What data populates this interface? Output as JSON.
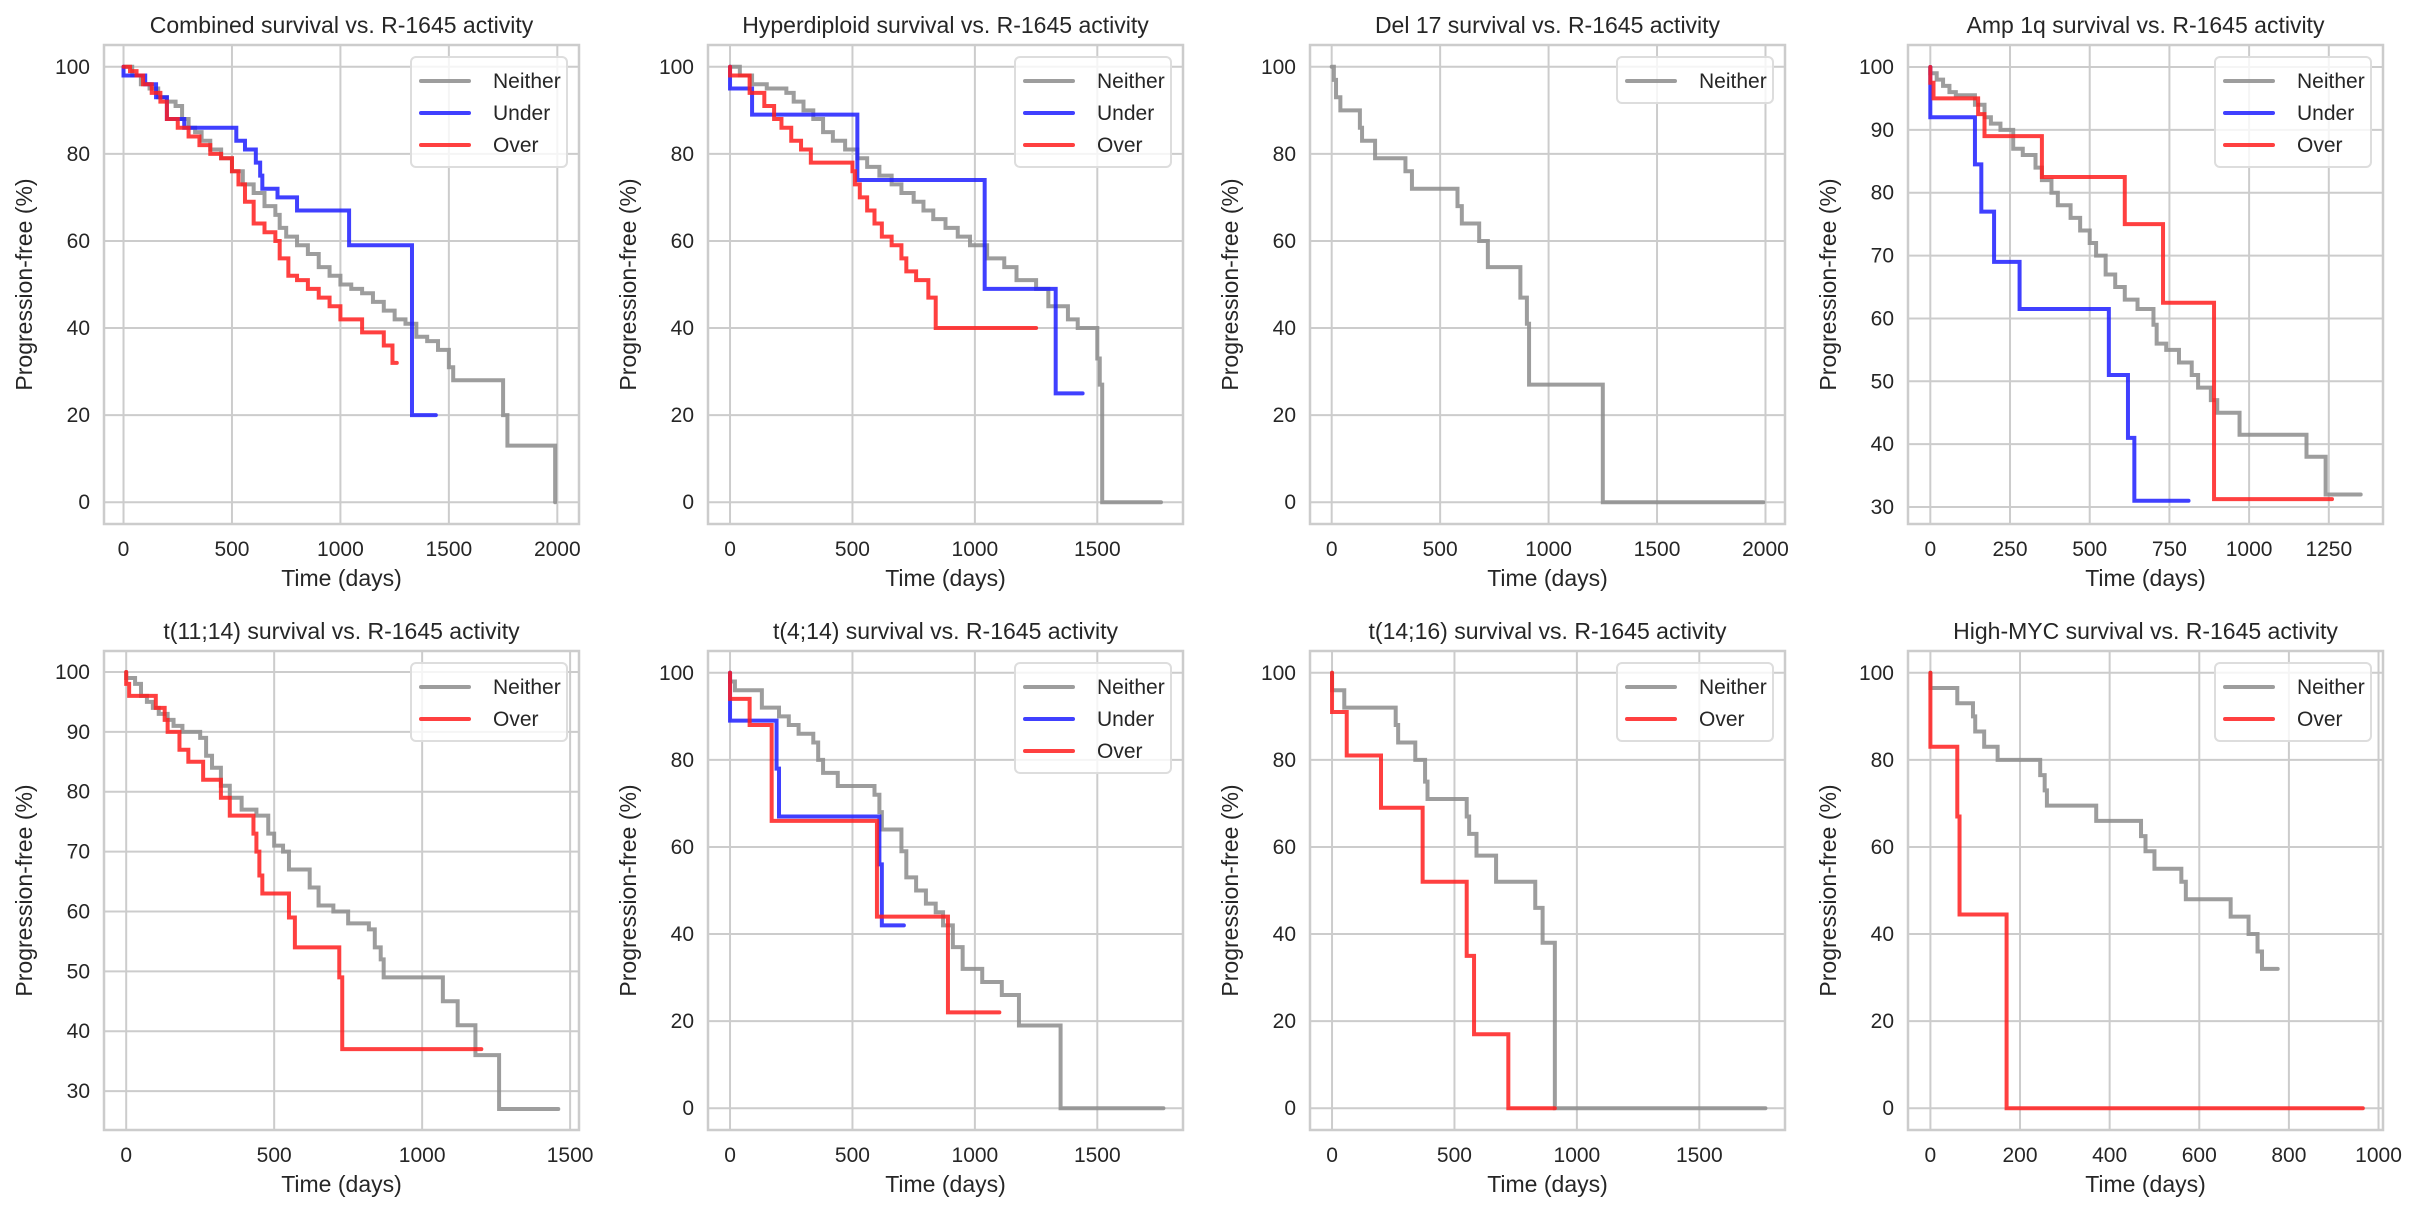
{
  "figure": {
    "suptitle": "",
    "series_colors": {
      "Neither": "#8c8c8c",
      "Under": "#1f1fff",
      "Over": "#ff1f1f"
    }
  },
  "chart_data": [
    {
      "type": "line",
      "step": true,
      "title": "Combined survival vs. R-1645 activity",
      "xlabel": "Time (days)",
      "ylabel": "Progression-free (%)",
      "xlim": [
        -90,
        2100
      ],
      "ylim": [
        -5,
        105
      ],
      "xticks": [
        0,
        500,
        1000,
        1500,
        2000
      ],
      "yticks": [
        0,
        20,
        40,
        60,
        80,
        100
      ],
      "grid": true,
      "legend": {
        "position": "top-right",
        "entries": [
          "Neither",
          "Under",
          "Over"
        ]
      },
      "series": [
        {
          "name": "Neither",
          "x": [
            0,
            40,
            80,
            120,
            160,
            200,
            240,
            270,
            300,
            330,
            360,
            400,
            450,
            500,
            550,
            600,
            650,
            700,
            720,
            750,
            800,
            850,
            900,
            950,
            1000,
            1050,
            1100,
            1150,
            1200,
            1250,
            1300,
            1350,
            1400,
            1450,
            1500,
            1520,
            1750,
            1770,
            1990
          ],
          "y": [
            100,
            98,
            96,
            95,
            93,
            92,
            91,
            88,
            86,
            85,
            83,
            81,
            79,
            76,
            73,
            71,
            68,
            66,
            63,
            61,
            59,
            57,
            54,
            52,
            50,
            49,
            48,
            46,
            44,
            42,
            41,
            38,
            37,
            35,
            31,
            28,
            20,
            13,
            0
          ],
          "end_x": 1990
        },
        {
          "name": "Under",
          "x": [
            0,
            100,
            150,
            200,
            280,
            520,
            560,
            610,
            630,
            640,
            710,
            800,
            1040,
            1330
          ],
          "y": [
            98,
            96,
            93,
            88,
            86,
            83,
            81,
            78,
            75,
            72,
            70,
            67,
            59,
            40
          ],
          "final_y": 20,
          "end_x": 1440
        },
        {
          "name": "Over",
          "x": [
            0,
            30,
            60,
            90,
            130,
            170,
            200,
            250,
            300,
            350,
            400,
            450,
            500,
            530,
            560,
            600,
            650,
            700,
            720,
            760,
            800,
            850,
            900,
            950,
            1000,
            1100,
            1200,
            1240
          ],
          "y": [
            100,
            99,
            98,
            96,
            94,
            92,
            88,
            86,
            84,
            82,
            80,
            79,
            76,
            73,
            69,
            64,
            62,
            60,
            56,
            52,
            51,
            49,
            47,
            45,
            42,
            39,
            36,
            32
          ],
          "end_x": 1260
        }
      ]
    },
    {
      "type": "line",
      "step": true,
      "title": "Hyperdiploid survival vs. R-1645 activity",
      "xlabel": "Time (days)",
      "ylabel": "Progression-free (%)",
      "xlim": [
        -90,
        1850
      ],
      "ylim": [
        -5,
        105
      ],
      "xticks": [
        0,
        500,
        1000,
        1500
      ],
      "yticks": [
        0,
        20,
        40,
        60,
        80,
        100
      ],
      "grid": true,
      "legend": {
        "position": "top-right",
        "entries": [
          "Neither",
          "Under",
          "Over"
        ]
      },
      "series": [
        {
          "name": "Neither",
          "x": [
            0,
            40,
            90,
            150,
            230,
            260,
            300,
            340,
            380,
            420,
            470,
            520,
            560,
            610,
            660,
            700,
            750,
            790,
            830,
            880,
            930,
            980,
            1050,
            1120,
            1170,
            1250,
            1300,
            1380,
            1420,
            1500,
            1510
          ],
          "y": [
            100,
            98,
            96,
            95,
            94,
            92,
            90,
            88,
            85,
            83,
            81,
            79,
            77,
            75,
            73,
            71,
            69,
            67,
            65,
            63,
            61,
            59,
            56,
            54,
            51,
            49,
            45,
            42,
            40,
            33,
            27
          ],
          "final_y": 0,
          "end_x": 1760
        },
        {
          "name": "Under",
          "x": [
            0,
            90,
            520,
            1040,
            1330
          ],
          "y": [
            95,
            89,
            74,
            49,
            25
          ],
          "end_x": 1440
        },
        {
          "name": "Over",
          "x": [
            0,
            80,
            140,
            180,
            210,
            250,
            290,
            330,
            500,
            510,
            530,
            560,
            590,
            620,
            660,
            700,
            720,
            760,
            810,
            840
          ],
          "y": [
            98,
            94,
            91,
            88,
            86,
            83,
            81,
            78,
            76,
            73,
            70,
            67,
            64,
            61,
            59,
            56,
            53,
            51,
            47,
            40
          ],
          "end_x": 1250
        }
      ]
    },
    {
      "type": "line",
      "step": true,
      "title": "Del 17 survival vs. R-1645 activity",
      "xlabel": "Time (days)",
      "ylabel": "Progression-free (%)",
      "xlim": [
        -100,
        2090
      ],
      "ylim": [
        -5,
        105
      ],
      "xticks": [
        0,
        500,
        1000,
        1500,
        2000
      ],
      "yticks": [
        0,
        20,
        40,
        60,
        80,
        100
      ],
      "grid": true,
      "legend": {
        "position": "top-right",
        "entries": [
          "Neither"
        ]
      },
      "series": [
        {
          "name": "Neither",
          "x": [
            0,
            10,
            20,
            40,
            130,
            140,
            200,
            340,
            370,
            580,
            600,
            680,
            720,
            870,
            900,
            910,
            1250
          ],
          "y": [
            100,
            97,
            93,
            90,
            86,
            83,
            79,
            76,
            72,
            68,
            64,
            60,
            54,
            47,
            41,
            27,
            0
          ],
          "end_x": 1990
        }
      ]
    },
    {
      "type": "line",
      "step": true,
      "title": "Amp 1q survival vs. R-1645 activity",
      "xlabel": "Time (days)",
      "ylabel": "Progression-free (%)",
      "xlim": [
        -70,
        1420
      ],
      "ylim": [
        27.3,
        103.5
      ],
      "xticks": [
        0,
        250,
        500,
        750,
        1000,
        1250
      ],
      "yticks": [
        30,
        40,
        50,
        60,
        70,
        80,
        90,
        100
      ],
      "grid": true,
      "legend": {
        "position": "top-right",
        "entries": [
          "Neither",
          "Under",
          "Over"
        ]
      },
      "series": [
        {
          "name": "Neither",
          "x": [
            0,
            20,
            40,
            60,
            80,
            140,
            170,
            190,
            220,
            260,
            290,
            330,
            350,
            380,
            400,
            440,
            470,
            500,
            520,
            550,
            580,
            610,
            650,
            700,
            710,
            740,
            780,
            820,
            840,
            880,
            900,
            970,
            1180,
            1240
          ],
          "y": [
            99,
            98,
            97,
            96,
            95.5,
            94,
            92,
            91,
            90,
            87,
            86,
            84,
            82,
            80,
            78,
            76,
            74,
            72,
            70,
            67,
            65,
            63,
            61.5,
            59,
            56,
            55,
            53,
            51,
            49,
            47,
            45,
            41.5,
            38,
            32
          ],
          "end_x": 1350
        },
        {
          "name": "Under",
          "x": [
            0,
            140,
            160,
            200,
            280,
            560,
            620,
            640
          ],
          "y": [
            92,
            84.5,
            77,
            69,
            61.5,
            51,
            41,
            31
          ],
          "end_x": 810
        },
        {
          "name": "Over",
          "x": [
            0,
            10,
            150,
            170,
            350,
            610,
            730,
            890
          ],
          "y": [
            97.5,
            95,
            92.5,
            89,
            82.5,
            75,
            62.5,
            31.25
          ],
          "end_x": 1260
        }
      ]
    },
    {
      "type": "line",
      "step": true,
      "title": "t(11;14) survival vs. R-1645 activity",
      "xlabel": "Time (days)",
      "ylabel": "Progression-free (%)",
      "xlim": [
        -75,
        1530
      ],
      "ylim": [
        23.5,
        103.5
      ],
      "xticks": [
        0,
        500,
        1000,
        1500
      ],
      "yticks": [
        30,
        40,
        50,
        60,
        70,
        80,
        90,
        100
      ],
      "grid": true,
      "legend": {
        "position": "top-right",
        "entries": [
          "Neither",
          "Over"
        ]
      },
      "series": [
        {
          "name": "Neither",
          "x": [
            0,
            30,
            50,
            70,
            90,
            110,
            140,
            160,
            190,
            250,
            270,
            290,
            320,
            350,
            390,
            440,
            480,
            500,
            530,
            550,
            620,
            650,
            700,
            750,
            820,
            840,
            860,
            870,
            1070,
            1120,
            1180,
            1260
          ],
          "y": [
            99,
            98,
            96,
            95,
            94,
            93,
            92,
            91,
            90,
            89,
            86,
            84,
            81,
            79,
            77,
            76,
            73,
            71,
            70,
            67,
            64,
            61,
            60,
            58,
            57,
            54,
            52,
            49,
            45,
            41,
            36,
            27
          ],
          "end_x": 1460
        },
        {
          "name": "Over",
          "x": [
            0,
            10,
            100,
            130,
            140,
            180,
            210,
            260,
            320,
            350,
            430,
            440,
            450,
            460,
            550,
            570,
            720,
            730
          ],
          "y": [
            98,
            96,
            94,
            92,
            90,
            87,
            85,
            82,
            79,
            76,
            73,
            70,
            66,
            63,
            59,
            54,
            49,
            37
          ],
          "end_x": 1200
        }
      ]
    },
    {
      "type": "line",
      "step": true,
      "title": "t(4;14) survival vs. R-1645 activity",
      "xlabel": "Time (days)",
      "ylabel": "Progression-free (%)",
      "xlim": [
        -90,
        1850
      ],
      "ylim": [
        -5,
        105
      ],
      "xticks": [
        0,
        500,
        1000,
        1500
      ],
      "yticks": [
        0,
        20,
        40,
        60,
        80,
        100
      ],
      "grid": true,
      "legend": {
        "position": "top-right",
        "entries": [
          "Neither",
          "Under",
          "Over"
        ]
      },
      "series": [
        {
          "name": "Neither",
          "x": [
            0,
            20,
            130,
            200,
            240,
            280,
            340,
            360,
            380,
            440,
            590,
            610,
            620,
            700,
            720,
            760,
            800,
            840,
            870,
            910,
            950,
            1030,
            1110,
            1180,
            1350
          ],
          "y": [
            98,
            96,
            92,
            90,
            88,
            86,
            84,
            80,
            77,
            74,
            72,
            68,
            64,
            59,
            53,
            50,
            47,
            45,
            42,
            37,
            32,
            29,
            26,
            19,
            0
          ],
          "end_x": 1770
        },
        {
          "name": "Under",
          "x": [
            0,
            190,
            200,
            610,
            620
          ],
          "y": [
            89,
            78,
            67,
            56,
            42
          ],
          "end_x": 710
        },
        {
          "name": "Over",
          "x": [
            0,
            80,
            170,
            600,
            890
          ],
          "y": [
            94,
            88,
            66,
            44,
            22
          ],
          "end_x": 1100
        }
      ]
    },
    {
      "type": "line",
      "step": true,
      "title": "t(14;16) survival vs. R-1645 activity",
      "xlabel": "Time (days)",
      "ylabel": "Progression-free (%)",
      "xlim": [
        -90,
        1850
      ],
      "ylim": [
        -5,
        105
      ],
      "xticks": [
        0,
        500,
        1000,
        1500
      ],
      "yticks": [
        0,
        20,
        40,
        60,
        80,
        100
      ],
      "grid": true,
      "legend": {
        "position": "top-right",
        "entries": [
          "Neither",
          "Over"
        ]
      },
      "series": [
        {
          "name": "Neither",
          "x": [
            0,
            50,
            260,
            270,
            340,
            380,
            390,
            550,
            560,
            590,
            670,
            830,
            860,
            910
          ],
          "y": [
            96,
            92,
            88,
            84,
            80,
            75,
            71,
            67,
            63,
            58,
            52,
            46,
            38,
            0
          ],
          "end_x": 1770
        },
        {
          "name": "Over",
          "x": [
            0,
            60,
            200,
            370,
            550,
            580,
            720
          ],
          "y": [
            91,
            81,
            69,
            52,
            35,
            17,
            0
          ],
          "end_x": 910
        }
      ]
    },
    {
      "type": "line",
      "step": true,
      "title": "High-MYC survival vs. R-1645 activity",
      "xlabel": "Time (days)",
      "ylabel": "Progression-free (%)",
      "xlim": [
        -50,
        1010
      ],
      "ylim": [
        -5,
        105
      ],
      "xticks": [
        0,
        200,
        400,
        600,
        800,
        1000
      ],
      "yticks": [
        0,
        20,
        40,
        60,
        80,
        100
      ],
      "grid": true,
      "legend": {
        "position": "top-right",
        "entries": [
          "Neither",
          "Over"
        ]
      },
      "series": [
        {
          "name": "Neither",
          "x": [
            0,
            60,
            95,
            100,
            120,
            150,
            245,
            255,
            260,
            370,
            470,
            480,
            500,
            560,
            570,
            670,
            710,
            730,
            740
          ],
          "y": [
            96.5,
            93,
            90,
            86.5,
            83,
            80,
            76.5,
            73,
            69.5,
            66,
            62.5,
            59,
            55,
            52,
            48,
            44,
            40,
            36,
            32
          ],
          "end_x": 775
        },
        {
          "name": "Over",
          "x": [
            0,
            60,
            65,
            170
          ],
          "y": [
            83,
            67,
            44.5,
            0
          ],
          "end_x": 965
        }
      ]
    }
  ]
}
